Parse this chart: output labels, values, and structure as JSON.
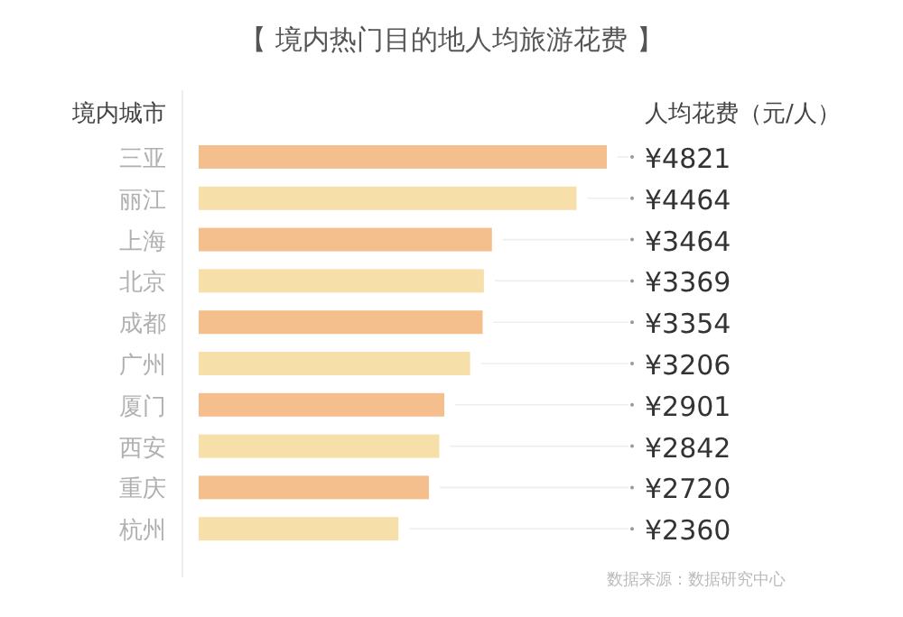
{
  "chart_data": {
    "type": "bar",
    "orientation": "horizontal",
    "title": "【 境内热门目的地人均旅游花费 】",
    "ylabel": "境内城市",
    "xlabel": "人均花费（元/人）",
    "categories": [
      "三亚",
      "丽江",
      "上海",
      "北京",
      "成都",
      "广州",
      "厦门",
      "西安",
      "重庆",
      "杭州"
    ],
    "values": [
      4821,
      4464,
      3464,
      3369,
      3354,
      3206,
      2901,
      2842,
      2720,
      2360
    ],
    "colors": [
      "#f4bf8c",
      "#f7dfaa",
      "#f4bf8c",
      "#f7dfaa",
      "#f4bf8c",
      "#f7dfaa",
      "#f4bf8c",
      "#f7dfaa",
      "#f4bf8c",
      "#f7dfaa"
    ],
    "value_labels": [
      "¥4821",
      "¥4464",
      "¥3464",
      "¥3369",
      "¥3354",
      "¥3206",
      "¥2901",
      "¥2842",
      "¥2720",
      "¥2360"
    ],
    "annotations": [
      "数据来源：数据研究中心"
    ]
  }
}
